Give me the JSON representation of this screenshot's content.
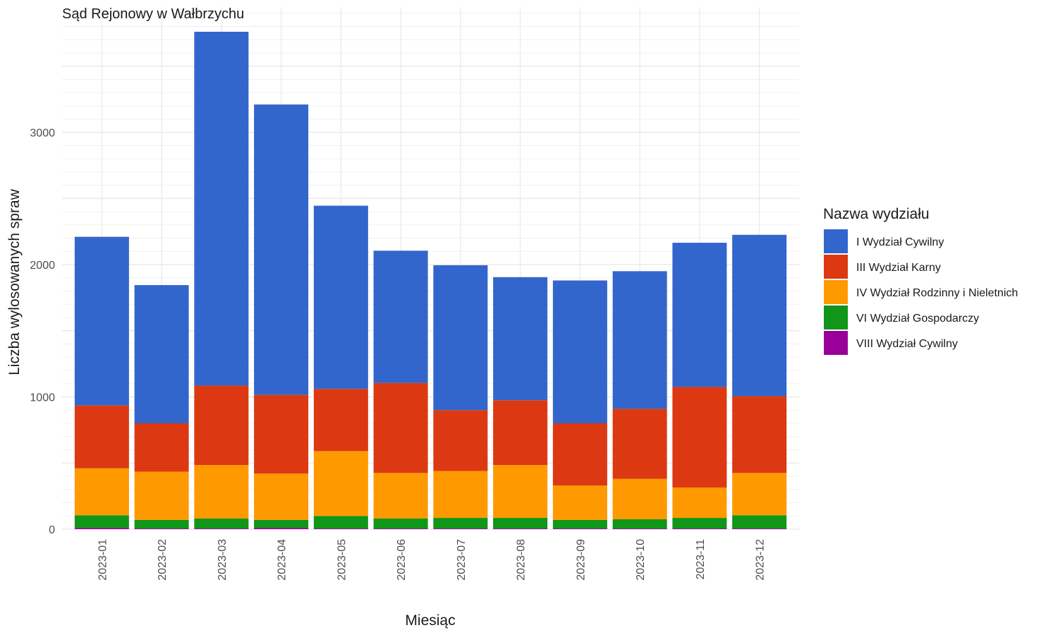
{
  "chart_data": {
    "type": "bar",
    "stacked": true,
    "title": "Sąd Rejonowy w Wałbrzychu",
    "xlabel": "Miesiąc",
    "ylabel": "Liczba wylosowanych spraw",
    "ylim": [
      0,
      3950
    ],
    "yticks": [
      0,
      1000,
      2000,
      3000
    ],
    "grid": true,
    "legend": {
      "title": "Nazwa wydziału",
      "position": "right"
    },
    "categories": [
      "2023-01",
      "2023-02",
      "2023-03",
      "2023-04",
      "2023-05",
      "2023-06",
      "2023-07",
      "2023-08",
      "2023-09",
      "2023-10",
      "2023-11",
      "2023-12"
    ],
    "series": [
      {
        "name": "VIII Wydział Cywilny",
        "color": "#990099",
        "values": [
          10,
          5,
          5,
          10,
          5,
          5,
          5,
          5,
          5,
          5,
          5,
          5
        ]
      },
      {
        "name": "VI Wydział Gospodarczy",
        "color": "#109618",
        "values": [
          95,
          65,
          75,
          60,
          95,
          75,
          80,
          80,
          65,
          70,
          80,
          100
        ]
      },
      {
        "name": "IV Wydział Rodzinny i Nieletnich",
        "color": "#FF9900",
        "values": [
          355,
          365,
          405,
          350,
          490,
          345,
          355,
          400,
          260,
          305,
          230,
          320
        ]
      },
      {
        "name": "III Wydział Karny",
        "color": "#DC3912",
        "values": [
          475,
          365,
          600,
          595,
          470,
          680,
          460,
          490,
          470,
          530,
          760,
          580
        ]
      },
      {
        "name": "I Wydział Cywilny",
        "color": "#3366CC",
        "values": [
          1275,
          1045,
          2675,
          2195,
          1385,
          1000,
          1095,
          930,
          1080,
          1040,
          1090,
          1220
        ]
      }
    ]
  }
}
